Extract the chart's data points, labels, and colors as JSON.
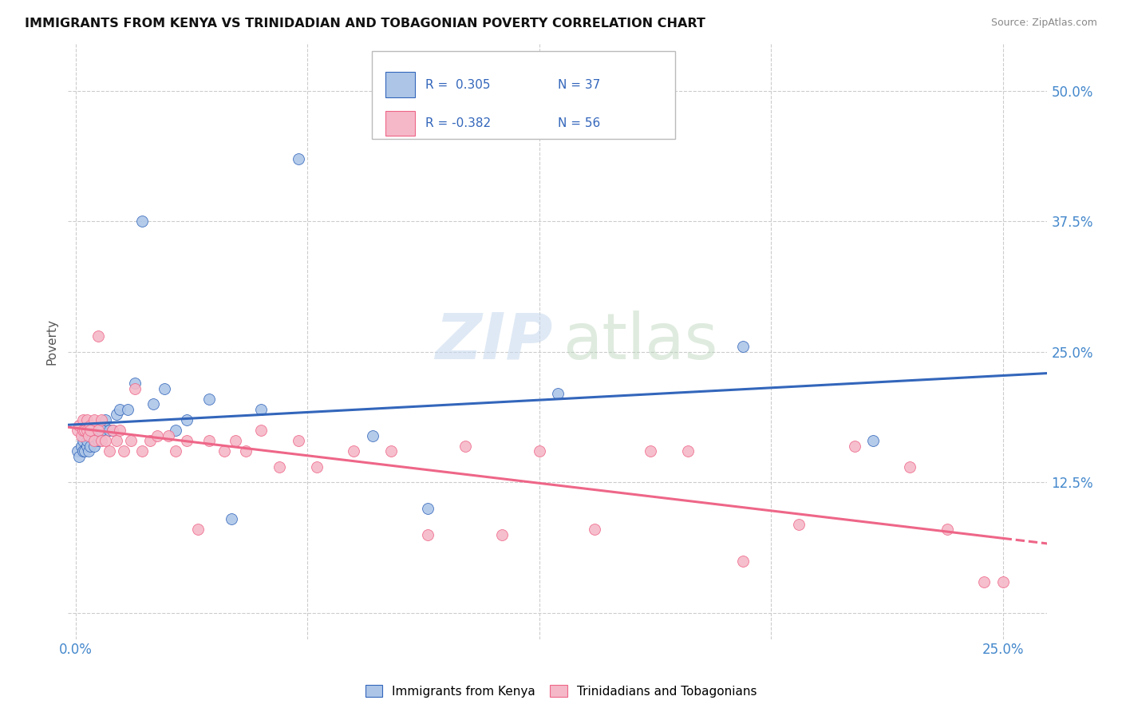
{
  "title": "IMMIGRANTS FROM KENYA VS TRINIDADIAN AND TOBAGONIAN POVERTY CORRELATION CHART",
  "source": "Source: ZipAtlas.com",
  "ylabel": "Poverty",
  "yticks": [
    0.0,
    0.125,
    0.25,
    0.375,
    0.5
  ],
  "ytick_labels": [
    "",
    "12.5%",
    "25.0%",
    "37.5%",
    "50.0%"
  ],
  "xlim": [
    -0.002,
    0.262
  ],
  "ylim": [
    -0.025,
    0.545
  ],
  "xgrid_lines": [
    0.0,
    0.0625,
    0.125,
    0.1875,
    0.25
  ],
  "r_kenya": 0.305,
  "n_kenya": 37,
  "r_trini": -0.382,
  "n_trini": 56,
  "legend_labels": [
    "Immigrants from Kenya",
    "Trinidadians and Tobagonians"
  ],
  "color_kenya": "#adc6e8",
  "color_trini": "#f5b8c8",
  "line_color_kenya": "#3366bb",
  "line_color_trini": "#ee6688",
  "kenya_x": [
    0.0005,
    0.001,
    0.0015,
    0.002,
    0.002,
    0.0025,
    0.003,
    0.003,
    0.0035,
    0.004,
    0.004,
    0.005,
    0.005,
    0.006,
    0.006,
    0.007,
    0.008,
    0.009,
    0.01,
    0.011,
    0.012,
    0.014,
    0.016,
    0.018,
    0.021,
    0.024,
    0.027,
    0.03,
    0.036,
    0.042,
    0.05,
    0.06,
    0.08,
    0.095,
    0.13,
    0.18,
    0.215
  ],
  "kenya_y": [
    0.155,
    0.15,
    0.16,
    0.155,
    0.165,
    0.155,
    0.16,
    0.165,
    0.155,
    0.16,
    0.17,
    0.165,
    0.16,
    0.165,
    0.17,
    0.175,
    0.185,
    0.175,
    0.175,
    0.19,
    0.195,
    0.195,
    0.22,
    0.375,
    0.2,
    0.215,
    0.175,
    0.185,
    0.205,
    0.09,
    0.195,
    0.435,
    0.17,
    0.1,
    0.21,
    0.255,
    0.165
  ],
  "trini_x": [
    0.0005,
    0.001,
    0.0015,
    0.002,
    0.002,
    0.0025,
    0.003,
    0.003,
    0.0035,
    0.004,
    0.004,
    0.005,
    0.005,
    0.006,
    0.006,
    0.007,
    0.007,
    0.008,
    0.009,
    0.01,
    0.011,
    0.012,
    0.013,
    0.015,
    0.016,
    0.018,
    0.02,
    0.022,
    0.025,
    0.027,
    0.03,
    0.033,
    0.036,
    0.04,
    0.043,
    0.046,
    0.05,
    0.055,
    0.06,
    0.065,
    0.075,
    0.085,
    0.095,
    0.105,
    0.115,
    0.125,
    0.14,
    0.155,
    0.165,
    0.18,
    0.195,
    0.21,
    0.225,
    0.235,
    0.245,
    0.25
  ],
  "trini_y": [
    0.175,
    0.18,
    0.17,
    0.175,
    0.185,
    0.175,
    0.175,
    0.185,
    0.17,
    0.18,
    0.175,
    0.185,
    0.165,
    0.175,
    0.265,
    0.185,
    0.165,
    0.165,
    0.155,
    0.175,
    0.165,
    0.175,
    0.155,
    0.165,
    0.215,
    0.155,
    0.165,
    0.17,
    0.17,
    0.155,
    0.165,
    0.08,
    0.165,
    0.155,
    0.165,
    0.155,
    0.175,
    0.14,
    0.165,
    0.14,
    0.155,
    0.155,
    0.075,
    0.16,
    0.075,
    0.155,
    0.08,
    0.155,
    0.155,
    0.05,
    0.085,
    0.16,
    0.14,
    0.08,
    0.03,
    0.03
  ]
}
